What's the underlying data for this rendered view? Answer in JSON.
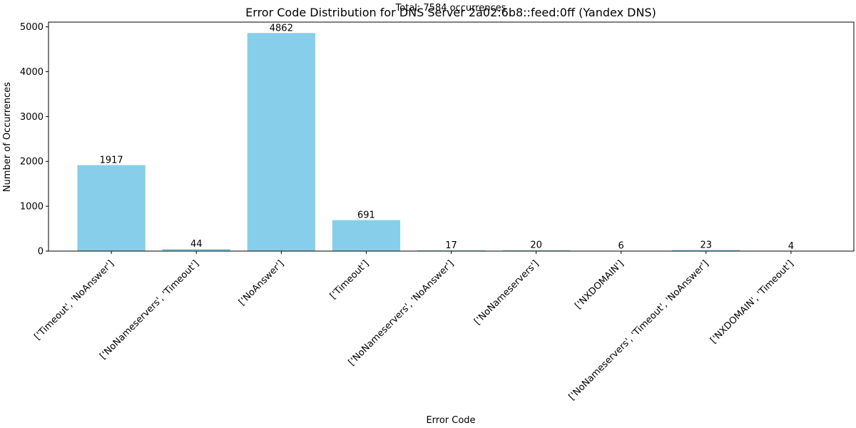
{
  "chart_data": {
    "type": "bar",
    "title": "Error Code Distribution for DNS Server 2a02:6b8::feed:0ff (Yandex DNS)",
    "subtitle": "Total: 7584 occurrences",
    "xlabel": "Error Code",
    "ylabel": "Number of Occurrences",
    "categories": [
      "['Timeout', 'NoAnswer']",
      "['NoNameservers', 'Timeout']",
      "['NoAnswer']",
      "['Timeout']",
      "['NoNameservers', 'NoAnswer']",
      "['NoNameservers']",
      "['NXDOMAIN']",
      "['NoNameservers', 'Timeout', 'NoAnswer']",
      "['NXDOMAIN', 'Timeout']"
    ],
    "values": [
      1917,
      44,
      4862,
      691,
      17,
      20,
      6,
      23,
      4
    ],
    "ylim": [
      0,
      5105
    ],
    "yticks": [
      0,
      1000,
      2000,
      3000,
      4000,
      5000
    ],
    "bar_color": "#87CEEB",
    "grid": false,
    "legend": "none"
  }
}
